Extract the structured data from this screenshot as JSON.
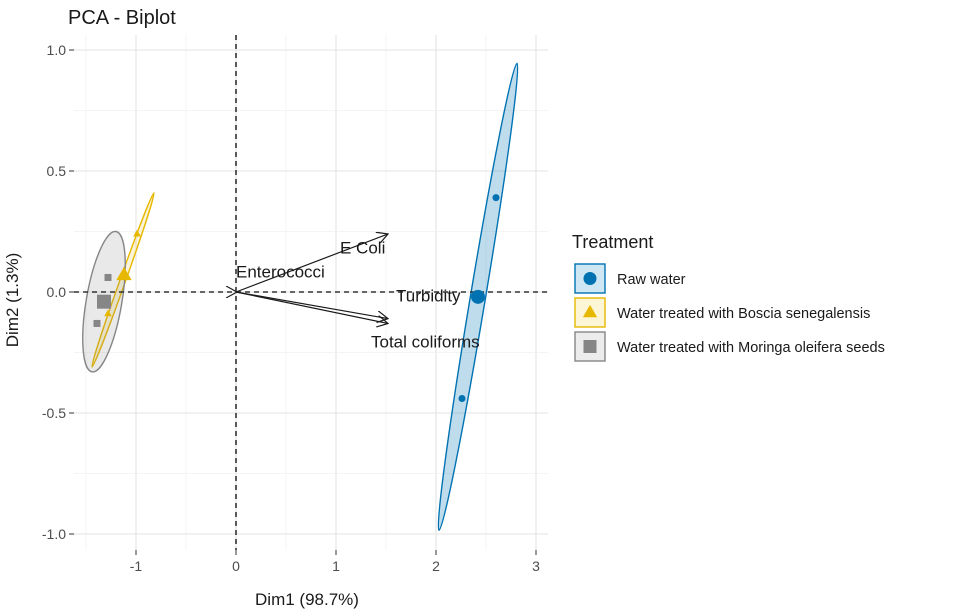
{
  "chart_data": {
    "type": "scatter",
    "title": "PCA - Biplot",
    "xlabel": "Dim1 (98.7%)",
    "ylabel": "Dim2 (1.3%)",
    "xlim": [
      -1.5,
      3.0
    ],
    "ylim": [
      -1.05,
      1.0
    ],
    "x_ticks": [
      -1,
      0,
      1,
      2,
      3
    ],
    "y_ticks": [
      -1.0,
      -0.5,
      0.0,
      0.5,
      1.0
    ],
    "x_tick_labels": [
      "-1",
      "0",
      "1",
      "2",
      "3"
    ],
    "y_tick_labels": [
      "-1.0",
      "-0.5",
      "0.0",
      "0.5",
      "1.0"
    ],
    "grid": true,
    "legend_position": "right",
    "legend_title": "Treatment",
    "series": [
      {
        "name": "Raw water",
        "color": "#0072B2",
        "marker": "circle",
        "points": [
          [
            2.6,
            0.39
          ],
          [
            2.26,
            -0.44
          ],
          [
            2.44,
            -0.02
          ]
        ],
        "centroid": [
          2.42,
          -0.02
        ],
        "ellipse": {
          "center": [
            2.42,
            -0.02
          ],
          "half_major_dx": 0.39,
          "half_major_dy": 0.965,
          "minor_ratio": 0.032
        }
      },
      {
        "name": "Water treated with Boscia senegalensis",
        "color": "#E7B800",
        "marker": "triangle",
        "points": [
          [
            -0.99,
            0.24
          ],
          [
            -1.28,
            -0.09
          ]
        ],
        "centroid": [
          -1.12,
          0.07
        ],
        "ellipse": {
          "center": [
            -1.13,
            0.05
          ],
          "half_major_dx": 0.31,
          "half_major_dy": 0.36,
          "minor_ratio": 0.03
        }
      },
      {
        "name": "Water treated with Moringa oleifera seeds",
        "color": "#868686",
        "marker": "square",
        "points": [
          [
            -1.28,
            0.06
          ],
          [
            -1.39,
            -0.13
          ]
        ],
        "centroid": [
          -1.32,
          -0.04
        ],
        "ellipse": {
          "center": [
            -1.32,
            -0.04
          ],
          "half_major_dx": 0.12,
          "half_major_dy": 0.29,
          "minor_ratio": 0.25
        }
      }
    ],
    "variables": [
      {
        "name": "E Coli",
        "x": 1.52,
        "y": 0.24,
        "label_x": 1.04,
        "label_y": 0.16
      },
      {
        "name": "Turbidity",
        "x": 1.52,
        "y": -0.11,
        "label_x": 1.6,
        "label_y": -0.04
      },
      {
        "name": "Total coliforms",
        "x": 1.52,
        "y": -0.13,
        "label_x": 1.35,
        "label_y": -0.23
      },
      {
        "name": "Enterococci",
        "x": 0.01,
        "y": 0.0,
        "label_x": 0.0,
        "label_y": 0.06
      }
    ]
  }
}
